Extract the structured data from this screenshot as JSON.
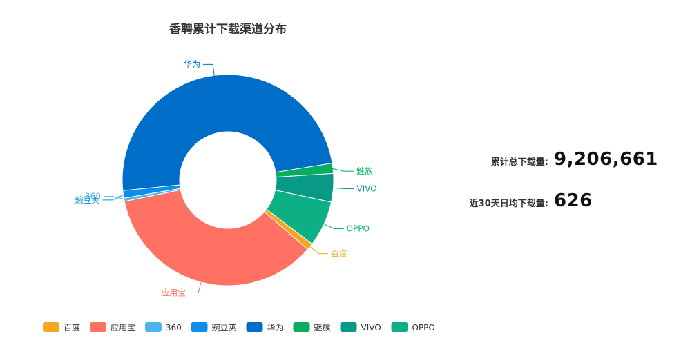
{
  "chart_data": {
    "type": "pie",
    "variant": "donut",
    "title": "香聘累计下载渠道分布",
    "legend_position": "bottom-left",
    "slices": [
      {
        "name": "百度",
        "value": 1.1,
        "color": "#f5a623"
      },
      {
        "name": "应用宝",
        "value": 36.5,
        "color": "#ff7163"
      },
      {
        "name": "360",
        "value": 0.5,
        "color": "#4fb3f0"
      },
      {
        "name": "豌豆荚",
        "value": 1.2,
        "color": "#0d8ee8"
      },
      {
        "name": "华为",
        "value": 50.6,
        "color": "#006ec8"
      },
      {
        "name": "魅族",
        "value": 1.6,
        "color": "#07ae5e"
      },
      {
        "name": "VIVO",
        "value": 4.5,
        "color": "#089a86"
      },
      {
        "name": "OPPO",
        "value": 7.2,
        "color": "#0cb084"
      }
    ]
  },
  "stats": {
    "total_label": "累计总下载量:",
    "total_value": "9,206,661",
    "avg_label": "近30天日均下载量:",
    "avg_value": "626"
  }
}
